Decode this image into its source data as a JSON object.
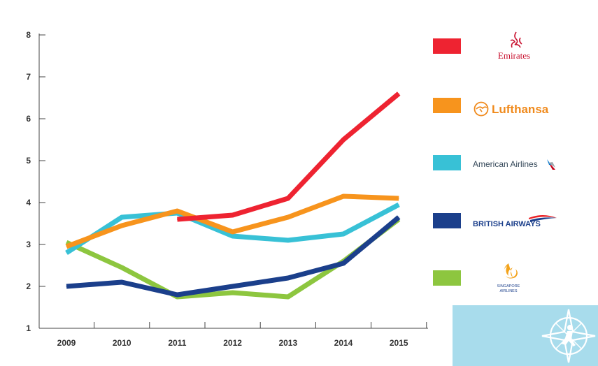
{
  "chart_data": {
    "type": "line",
    "x": [
      "2009",
      "2010",
      "2011",
      "2012",
      "2013",
      "2014",
      "2015"
    ],
    "ylim": [
      1,
      8
    ],
    "yticks": [
      "1",
      "2",
      "3",
      "4",
      "5",
      "6",
      "7",
      "8"
    ],
    "grid": false,
    "legend_position": "right",
    "series": [
      {
        "name": "Emirates",
        "color": "#ee2331",
        "values": [
          null,
          null,
          3.6,
          3.7,
          4.1,
          5.5,
          6.6
        ]
      },
      {
        "name": "Lufthansa",
        "color": "#f7941d",
        "values": [
          2.95,
          3.45,
          3.8,
          3.3,
          3.65,
          4.15,
          4.1
        ]
      },
      {
        "name": "American Airlines",
        "color": "#38c1d6",
        "values": [
          2.8,
          3.65,
          3.75,
          3.2,
          3.1,
          3.25,
          3.95
        ]
      },
      {
        "name": "BRITISH AIRWAYS",
        "color": "#1b3f8b",
        "values": [
          2.0,
          2.1,
          1.8,
          2.0,
          2.2,
          2.55,
          3.65
        ]
      },
      {
        "name": "SINGAPORE AIRLINES",
        "color": "#8dc63f",
        "values": [
          3.05,
          2.45,
          1.75,
          1.85,
          1.75,
          2.6,
          3.6
        ]
      }
    ]
  },
  "legend_logo_icons": [
    "emirates-logo-icon",
    "lufthansa-crane-icon",
    "american-airlines-flag-icon",
    "british-airways-ribbon-icon",
    "singapore-airlines-bird-icon"
  ],
  "watermark_icon": "compass-runner-icon"
}
